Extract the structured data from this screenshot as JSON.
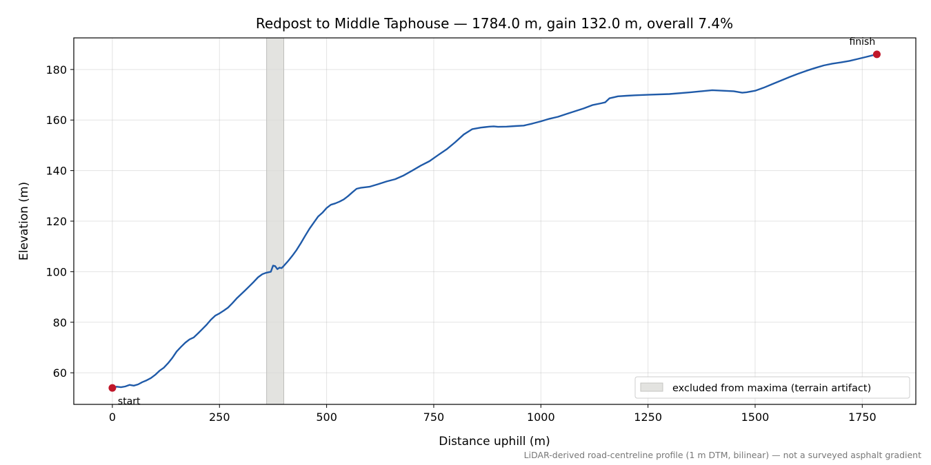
{
  "chart_data": {
    "type": "line",
    "title": "Redpost to Middle Taphouse — 1784.0 m, gain 132.0 m, overall 7.4%",
    "xlabel": "Distance uphill (m)",
    "ylabel": "Elevation (m)",
    "xlim": [
      -90,
      1875
    ],
    "ylim": [
      47.5,
      192.5
    ],
    "xticks": [
      0,
      250,
      500,
      750,
      1000,
      1250,
      1500,
      1750
    ],
    "yticks": [
      60,
      80,
      100,
      120,
      140,
      160,
      180
    ],
    "grid": true,
    "line_color": "#1f5aa8",
    "marker_color": "#c0172a",
    "band_color": "#d9d9d6",
    "excluded_band": {
      "x0": 360,
      "x1": 400
    },
    "legend": {
      "placement": "bottom-right",
      "entries": [
        "excluded from maxima (terrain artifact)"
      ]
    },
    "annotations": [
      {
        "text": "start",
        "x": 0,
        "y": 54.0
      },
      {
        "text": "finish",
        "x": 1784,
        "y": 186.0
      }
    ],
    "footnote": "LiDAR-derived road-centreline profile (1 m DTM, bilinear) — not a surveyed asphalt gradient",
    "series": [
      {
        "x": [
          0,
          10,
          20,
          30,
          40,
          50,
          60,
          70,
          80,
          90,
          100,
          110,
          120,
          130,
          140,
          150,
          160,
          170,
          180,
          190,
          200,
          210,
          220,
          230,
          240,
          250,
          260,
          270,
          280,
          290,
          300,
          310,
          320,
          330,
          340,
          350,
          360,
          370,
          375,
          380,
          385,
          390,
          395,
          400,
          410,
          420,
          430,
          440,
          450,
          460,
          470,
          480,
          490,
          500,
          510,
          520,
          530,
          540,
          550,
          560,
          570,
          580,
          590,
          600,
          620,
          640,
          660,
          680,
          700,
          720,
          740,
          760,
          780,
          800,
          820,
          840,
          860,
          870,
          880,
          890,
          900,
          920,
          940,
          960,
          980,
          1000,
          1020,
          1040,
          1060,
          1080,
          1100,
          1120,
          1140,
          1150,
          1160,
          1180,
          1200,
          1220,
          1250,
          1300,
          1350,
          1400,
          1450,
          1470,
          1480,
          1500,
          1520,
          1540,
          1560,
          1580,
          1600,
          1620,
          1640,
          1660,
          1680,
          1700,
          1720,
          1740,
          1760,
          1784
        ],
        "y": [
          54.0,
          54.5,
          54.3,
          54.6,
          55.2,
          54.9,
          55.4,
          56.3,
          57.0,
          57.9,
          59.2,
          60.8,
          62.0,
          63.8,
          65.9,
          68.4,
          70.2,
          71.9,
          73.2,
          74.0,
          75.6,
          77.3,
          79.0,
          81.0,
          82.6,
          83.5,
          84.6,
          85.8,
          87.5,
          89.4,
          91.0,
          92.6,
          94.3,
          96.0,
          97.8,
          99.0,
          99.6,
          100.0,
          102.4,
          102.2,
          101.0,
          101.6,
          101.4,
          102.3,
          104.2,
          106.3,
          108.6,
          111.3,
          114.2,
          117.0,
          119.4,
          121.8,
          123.3,
          125.2,
          126.5,
          127.0,
          127.7,
          128.6,
          129.9,
          131.4,
          132.8,
          133.2,
          133.4,
          133.6,
          134.6,
          135.7,
          136.6,
          138.1,
          140.0,
          142.0,
          143.7,
          146.1,
          148.4,
          151.2,
          154.3,
          156.4,
          157.0,
          157.2,
          157.4,
          157.5,
          157.3,
          157.4,
          157.6,
          157.8,
          158.6,
          159.5,
          160.5,
          161.3,
          162.4,
          163.5,
          164.6,
          165.9,
          166.6,
          167.0,
          168.6,
          169.4,
          169.6,
          169.8,
          170.0,
          170.3,
          171.0,
          171.8,
          171.4,
          170.8,
          171.0,
          171.6,
          172.8,
          174.2,
          175.6,
          177.0,
          178.3,
          179.5,
          180.6,
          181.6,
          182.3,
          182.8,
          183.4,
          184.2,
          185.0,
          186.0
        ]
      }
    ]
  }
}
